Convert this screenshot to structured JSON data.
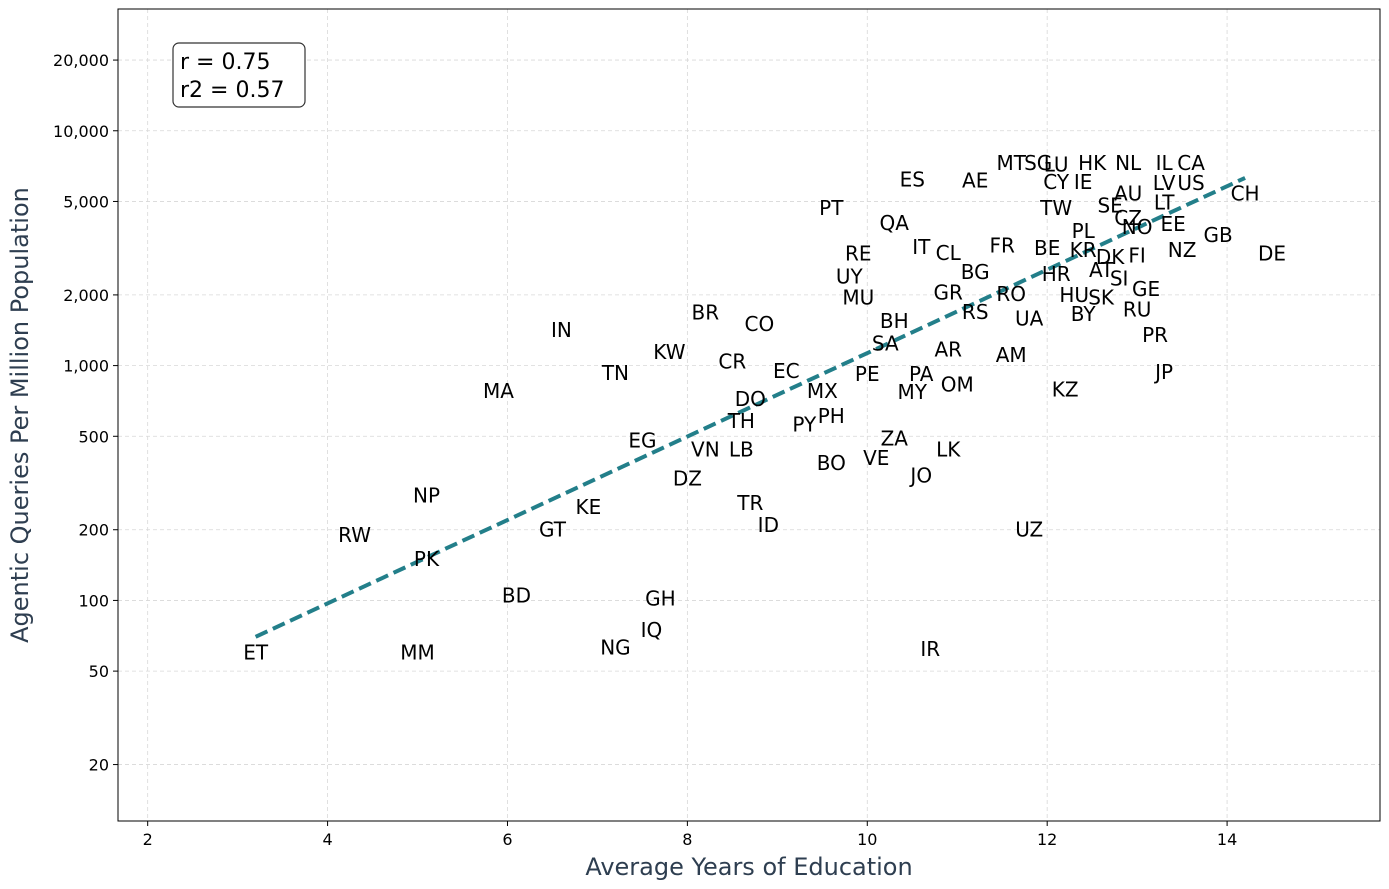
{
  "chart_data": {
    "type": "scatter",
    "xlabel": "Average Years of Education",
    "ylabel": "Agentic Queries Per Million Population",
    "xlim": [
      1.67,
      15.7
    ],
    "ylim": [
      11.5,
      33000
    ],
    "y_scale": "log",
    "grid": true,
    "x_ticks": [
      2,
      4,
      6,
      8,
      10,
      12,
      14
    ],
    "y_ticks": [
      20,
      50,
      100,
      200,
      500,
      1000,
      2000,
      5000,
      10000,
      20000
    ],
    "y_tick_labels": [
      "20",
      "50",
      "100",
      "200",
      "500",
      "1,000",
      "2,000",
      "5,000",
      "10,000",
      "20,000"
    ],
    "stats": {
      "r": "r = 0.75",
      "r2": "r2 = 0.57"
    },
    "trend_line": {
      "color": "#237f8a",
      "x": [
        3.2,
        14.2
      ],
      "y": [
        70,
        6300
      ]
    },
    "points": [
      {
        "label": "ET",
        "x": 3.2,
        "y": 60
      },
      {
        "label": "RW",
        "x": 4.3,
        "y": 190
      },
      {
        "label": "MM",
        "x": 5.0,
        "y": 60
      },
      {
        "label": "NP",
        "x": 5.1,
        "y": 280
      },
      {
        "label": "PK",
        "x": 5.1,
        "y": 150
      },
      {
        "label": "MA",
        "x": 5.9,
        "y": 780
      },
      {
        "label": "BD",
        "x": 6.1,
        "y": 105
      },
      {
        "label": "IN",
        "x": 6.6,
        "y": 1420
      },
      {
        "label": "GT",
        "x": 6.5,
        "y": 200
      },
      {
        "label": "KE",
        "x": 6.9,
        "y": 250
      },
      {
        "label": "TN",
        "x": 7.2,
        "y": 930
      },
      {
        "label": "NG",
        "x": 7.2,
        "y": 63
      },
      {
        "label": "EG",
        "x": 7.5,
        "y": 480
      },
      {
        "label": "GH",
        "x": 7.7,
        "y": 102
      },
      {
        "label": "IQ",
        "x": 7.6,
        "y": 75
      },
      {
        "label": "KW",
        "x": 7.8,
        "y": 1140
      },
      {
        "label": "DZ",
        "x": 8.0,
        "y": 330
      },
      {
        "label": "BR",
        "x": 8.2,
        "y": 1680
      },
      {
        "label": "VN",
        "x": 8.2,
        "y": 440
      },
      {
        "label": "CR",
        "x": 8.5,
        "y": 1040
      },
      {
        "label": "TR",
        "x": 8.7,
        "y": 260
      },
      {
        "label": "LB",
        "x": 8.6,
        "y": 440
      },
      {
        "label": "DO",
        "x": 8.7,
        "y": 720
      },
      {
        "label": "TH",
        "x": 8.6,
        "y": 580
      },
      {
        "label": "CO",
        "x": 8.8,
        "y": 1500
      },
      {
        "label": "ID",
        "x": 8.9,
        "y": 210
      },
      {
        "label": "EC",
        "x": 9.1,
        "y": 950
      },
      {
        "label": "PY",
        "x": 9.3,
        "y": 560
      },
      {
        "label": "MX",
        "x": 9.5,
        "y": 780
      },
      {
        "label": "PT",
        "x": 9.6,
        "y": 4700
      },
      {
        "label": "BO",
        "x": 9.6,
        "y": 385
      },
      {
        "label": "PH",
        "x": 9.6,
        "y": 610
      },
      {
        "label": "UY",
        "x": 9.8,
        "y": 2400
      },
      {
        "label": "RE",
        "x": 9.9,
        "y": 3000
      },
      {
        "label": "MU",
        "x": 9.9,
        "y": 1950
      },
      {
        "label": "PE",
        "x": 10.0,
        "y": 920
      },
      {
        "label": "VE",
        "x": 10.1,
        "y": 405
      },
      {
        "label": "SA",
        "x": 10.2,
        "y": 1240
      },
      {
        "label": "QA",
        "x": 10.3,
        "y": 4050
      },
      {
        "label": "ZA",
        "x": 10.3,
        "y": 490
      },
      {
        "label": "BH",
        "x": 10.3,
        "y": 1550
      },
      {
        "label": "MY",
        "x": 10.5,
        "y": 770
      },
      {
        "label": "ES",
        "x": 10.5,
        "y": 6200
      },
      {
        "label": "PA",
        "x": 10.6,
        "y": 920
      },
      {
        "label": "IR",
        "x": 10.7,
        "y": 62
      },
      {
        "label": "JO",
        "x": 10.6,
        "y": 340
      },
      {
        "label": "IT",
        "x": 10.6,
        "y": 3200
      },
      {
        "label": "OM",
        "x": 11.0,
        "y": 830
      },
      {
        "label": "AR",
        "x": 10.9,
        "y": 1170
      },
      {
        "label": "LK",
        "x": 10.9,
        "y": 440
      },
      {
        "label": "CL",
        "x": 10.9,
        "y": 3020
      },
      {
        "label": "GR",
        "x": 10.9,
        "y": 2050
      },
      {
        "label": "AE",
        "x": 11.2,
        "y": 6150
      },
      {
        "label": "BG",
        "x": 11.2,
        "y": 2500
      },
      {
        "label": "RS",
        "x": 11.2,
        "y": 1690
      },
      {
        "label": "AM",
        "x": 11.6,
        "y": 1110
      },
      {
        "label": "FR",
        "x": 11.5,
        "y": 3250
      },
      {
        "label": "RO",
        "x": 11.6,
        "y": 2020
      },
      {
        "label": "MT",
        "x": 11.6,
        "y": 7300
      },
      {
        "label": "UA",
        "x": 11.8,
        "y": 1590
      },
      {
        "label": "UZ",
        "x": 11.8,
        "y": 200
      },
      {
        "label": "SG",
        "x": 11.9,
        "y": 7300
      },
      {
        "label": "KZ",
        "x": 12.2,
        "y": 790
      },
      {
        "label": "TW",
        "x": 12.1,
        "y": 4700
      },
      {
        "label": "HR",
        "x": 12.1,
        "y": 2450
      },
      {
        "label": "BE",
        "x": 12.0,
        "y": 3170
      },
      {
        "label": "LU",
        "x": 12.1,
        "y": 7200
      },
      {
        "label": "CY",
        "x": 12.1,
        "y": 6050
      },
      {
        "label": "HU",
        "x": 12.3,
        "y": 2000
      },
      {
        "label": "BY",
        "x": 12.4,
        "y": 1660
      },
      {
        "label": "IE",
        "x": 12.4,
        "y": 6050
      },
      {
        "label": "PL",
        "x": 12.4,
        "y": 3750
      },
      {
        "label": "KR",
        "x": 12.4,
        "y": 3100
      },
      {
        "label": "HK",
        "x": 12.5,
        "y": 7300
      },
      {
        "label": "AT",
        "x": 12.6,
        "y": 2550
      },
      {
        "label": "SK",
        "x": 12.6,
        "y": 1950
      },
      {
        "label": "SE",
        "x": 12.7,
        "y": 4800
      },
      {
        "label": "DK",
        "x": 12.7,
        "y": 2900
      },
      {
        "label": "NL",
        "x": 12.9,
        "y": 7300
      },
      {
        "label": "AU",
        "x": 12.9,
        "y": 5400
      },
      {
        "label": "SI",
        "x": 12.8,
        "y": 2350
      },
      {
        "label": "CZ",
        "x": 12.9,
        "y": 4250
      },
      {
        "label": "NO",
        "x": 13.0,
        "y": 3900
      },
      {
        "label": "FI",
        "x": 13.0,
        "y": 2950
      },
      {
        "label": "RU",
        "x": 13.0,
        "y": 1730
      },
      {
        "label": "GE",
        "x": 13.1,
        "y": 2120
      },
      {
        "label": "PR",
        "x": 13.2,
        "y": 1350
      },
      {
        "label": "JP",
        "x": 13.3,
        "y": 940
      },
      {
        "label": "LV",
        "x": 13.3,
        "y": 6000
      },
      {
        "label": "IL",
        "x": 13.3,
        "y": 7300
      },
      {
        "label": "LT",
        "x": 13.3,
        "y": 4950
      },
      {
        "label": "EE",
        "x": 13.4,
        "y": 4000
      },
      {
        "label": "NZ",
        "x": 13.5,
        "y": 3100
      },
      {
        "label": "US",
        "x": 13.6,
        "y": 6000
      },
      {
        "label": "CA",
        "x": 13.6,
        "y": 7300
      },
      {
        "label": "GB",
        "x": 13.9,
        "y": 3600
      },
      {
        "label": "CH",
        "x": 14.2,
        "y": 5400
      },
      {
        "label": "DE",
        "x": 14.5,
        "y": 3000
      }
    ]
  }
}
